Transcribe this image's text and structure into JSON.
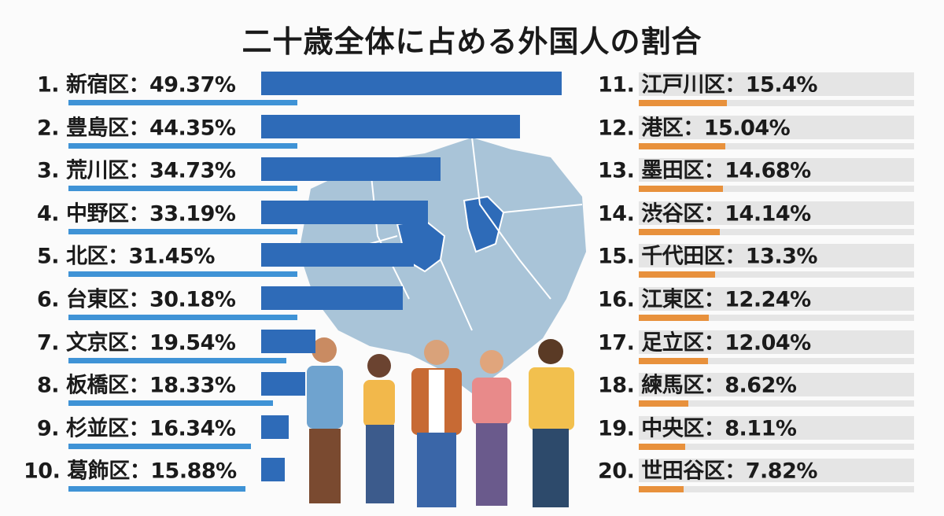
{
  "chart_data": {
    "type": "bar",
    "title": "二十歳全体に占める外国人の割合",
    "xlabel": "",
    "ylabel": "",
    "unit": "%",
    "series_colors": {
      "top10": "#2e6bb8",
      "top10_underline": "#3f93d6",
      "rank11_20": "#e8913c",
      "track": "#e5e5e5"
    },
    "rows": [
      {
        "rank": "1.",
        "ward": "新宿区",
        "value": 49.37,
        "label": "49.37%"
      },
      {
        "rank": "2.",
        "ward": "豊島区",
        "value": 44.35,
        "label": "44.35%"
      },
      {
        "rank": "3.",
        "ward": "荒川区",
        "value": 34.73,
        "label": "34.73%"
      },
      {
        "rank": "4.",
        "ward": "中野区",
        "value": 33.19,
        "label": "33.19%"
      },
      {
        "rank": "5.",
        "ward": "北区",
        "value": 31.45,
        "label": "31.45%"
      },
      {
        "rank": "6.",
        "ward": "台東区",
        "value": 30.18,
        "label": "30.18%"
      },
      {
        "rank": "7.",
        "ward": "文京区",
        "value": 19.54,
        "label": "19.54%"
      },
      {
        "rank": "8.",
        "ward": "板橋区",
        "value": 18.33,
        "label": "18.33%"
      },
      {
        "rank": "9.",
        "ward": "杉並区",
        "value": 16.34,
        "label": "16.34%"
      },
      {
        "rank": "10.",
        "ward": "葛飾区",
        "value": 15.88,
        "label": "15.88%"
      },
      {
        "rank": "11.",
        "ward": "江戸川区",
        "value": 15.4,
        "label": "15.4%"
      },
      {
        "rank": "12.",
        "ward": "港区",
        "value": 15.04,
        "label": "15.04%"
      },
      {
        "rank": "13.",
        "ward": "墨田区",
        "value": 14.68,
        "label": "14.68%"
      },
      {
        "rank": "14.",
        "ward": "渋谷区",
        "value": 14.14,
        "label": "14.14%"
      },
      {
        "rank": "15.",
        "ward": "千代田区",
        "value": 13.3,
        "label": "13.3%"
      },
      {
        "rank": "16.",
        "ward": "江東区",
        "value": 12.24,
        "label": "12.24%"
      },
      {
        "rank": "17.",
        "ward": "足立区",
        "value": 12.04,
        "label": "12.04%"
      },
      {
        "rank": "18.",
        "ward": "練馬区",
        "value": 8.62,
        "label": "8.62%"
      },
      {
        "rank": "19.",
        "ward": "中央区",
        "value": 8.11,
        "label": "8.11%"
      },
      {
        "rank": "20.",
        "ward": "世田谷区",
        "value": 7.82,
        "label": "7.82%"
      }
    ]
  }
}
